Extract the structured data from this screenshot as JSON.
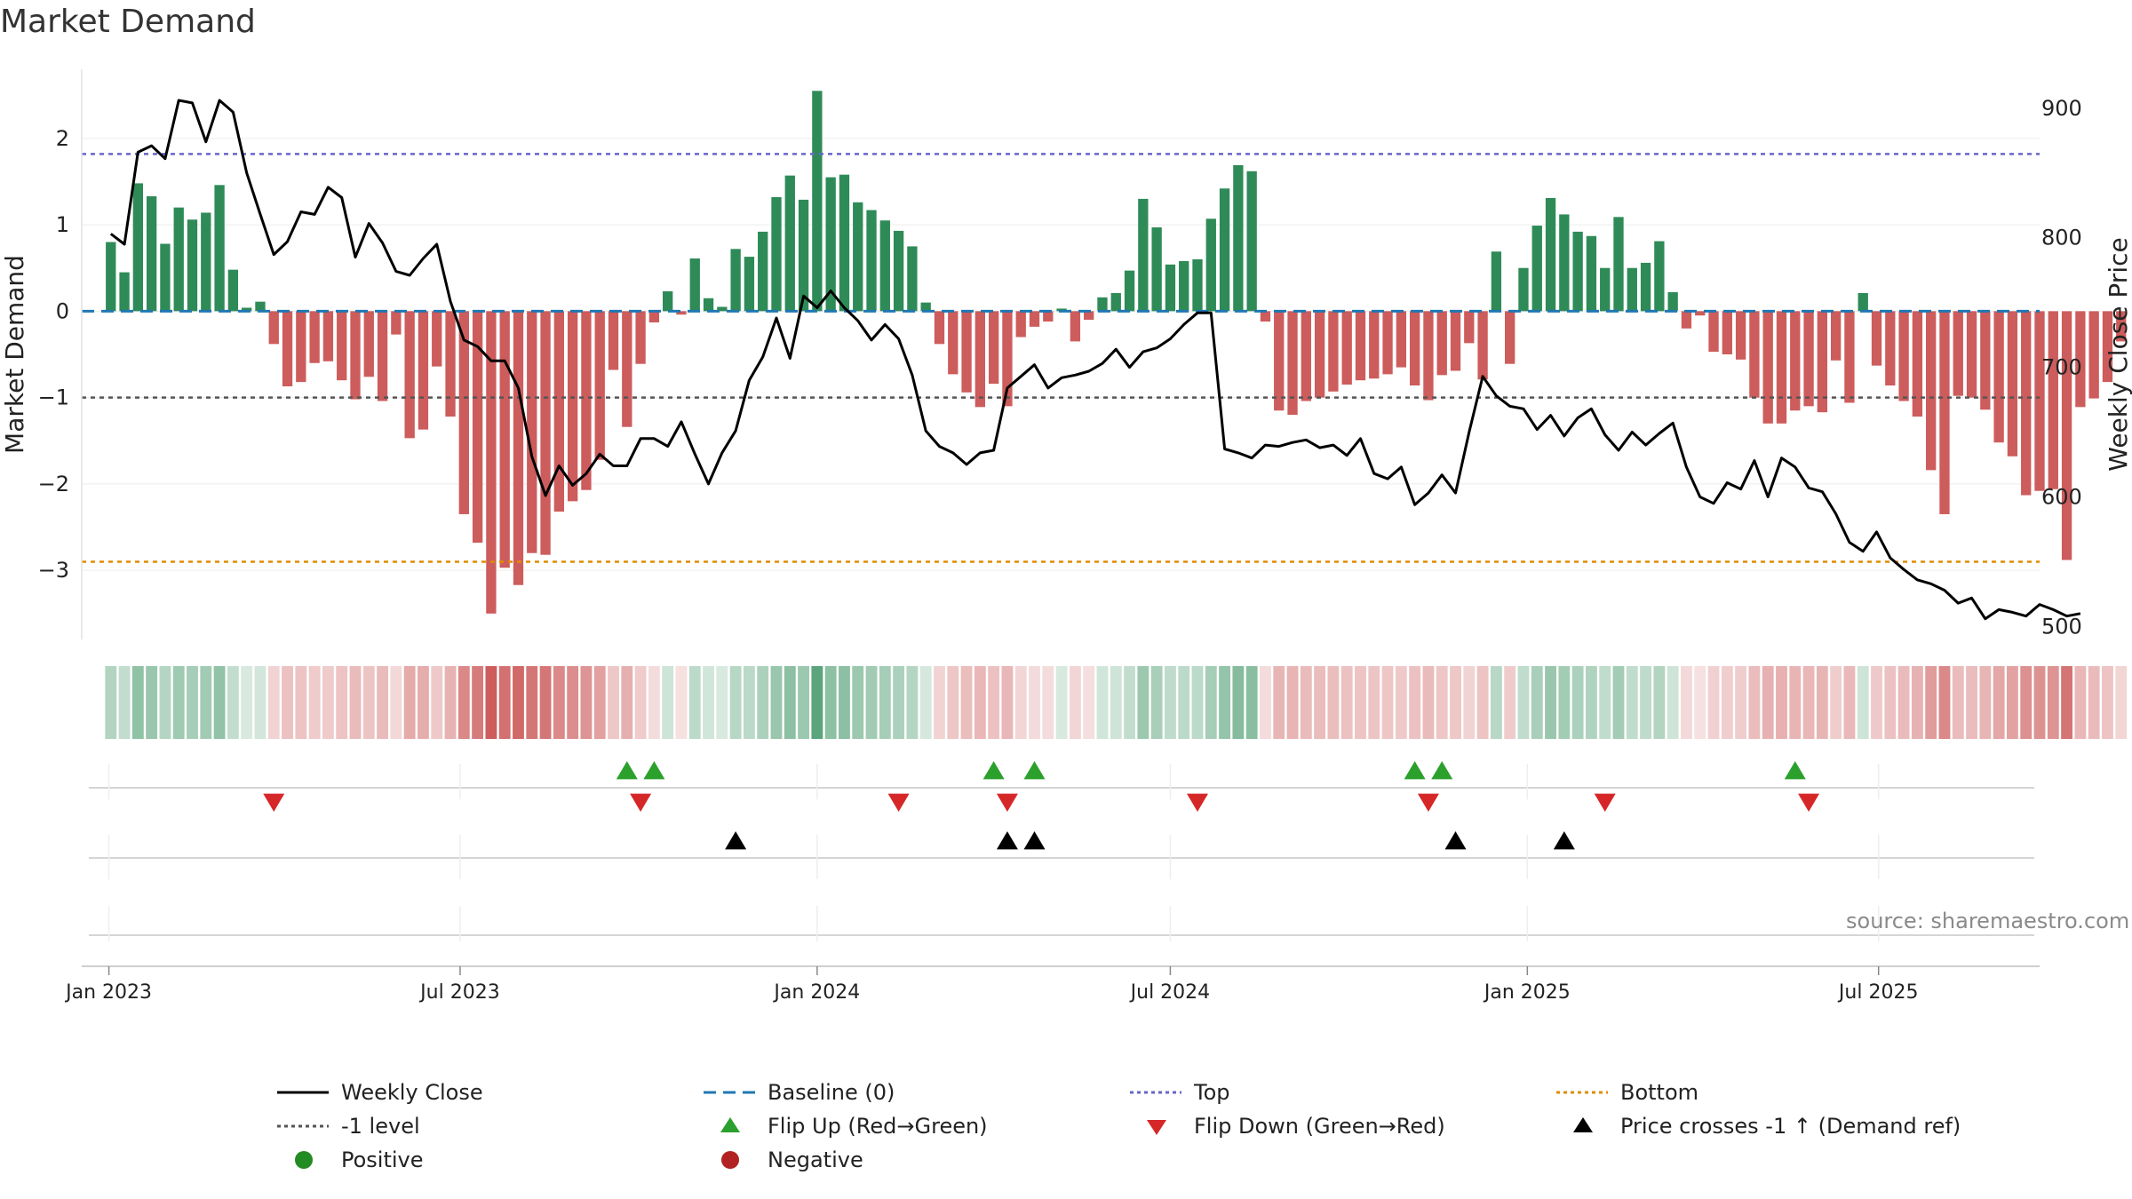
{
  "title": "Market Demand",
  "source": "source: sharemaestro.com",
  "colors": {
    "positive_bar": "#2e8b57",
    "negative_bar": "#cd5c5c",
    "price_line": "#000000",
    "baseline": "#1f77b4",
    "minus_one": "#555555",
    "top": "#6666cc",
    "bottom": "#e08c00",
    "flip_up": "#2ca02c",
    "flip_down": "#d62728",
    "cross": "#000000",
    "positive_dot": "#228b22",
    "negative_dot": "#b22222"
  },
  "chart_data": {
    "type": "bar",
    "title": "Market Demand",
    "ylabel_left": "Market Demand",
    "ylabel_right": "Weekly Close Price",
    "ylim_left": [
      -3.8,
      2.8
    ],
    "yticks_left": [
      -3,
      -2,
      -1,
      0,
      1,
      2
    ],
    "ytick_labels_left": [
      "−3",
      "−2",
      "−1",
      "0",
      "1",
      "2"
    ],
    "ylim_right": [
      490,
      930
    ],
    "yticks_right": [
      500,
      600,
      700,
      800,
      900
    ],
    "ytick_labels_right": [
      "500",
      "600",
      "700",
      "800",
      "900"
    ],
    "x_start": "2023-01-02",
    "x_end": "2025-09-15",
    "date_axis_min": "2022-12-18",
    "date_axis_max": "2025-09-22",
    "x_ticks": [
      {
        "date": "2023-01-01",
        "label": "Jan 2023"
      },
      {
        "date": "2023-07-01",
        "label": "Jul 2023"
      },
      {
        "date": "2024-01-01",
        "label": "Jan 2024"
      },
      {
        "date": "2024-07-01",
        "label": "Jul 2024"
      },
      {
        "date": "2025-01-01",
        "label": "Jan 2025"
      },
      {
        "date": "2025-07-01",
        "label": "Jul 2025"
      }
    ],
    "reference_lines": {
      "baseline": 0,
      "minus_one": -1,
      "top": 1.82,
      "bottom": -2.9
    },
    "demand": [
      0.8,
      0.45,
      1.48,
      1.33,
      0.78,
      1.2,
      1.06,
      1.14,
      1.46,
      0.48,
      0.04,
      0.11,
      -0.38,
      -0.87,
      -0.82,
      -0.6,
      -0.58,
      -0.8,
      -1.02,
      -0.76,
      -1.04,
      -0.27,
      -1.47,
      -1.37,
      -0.64,
      -1.22,
      -2.35,
      -2.68,
      -3.5,
      -2.97,
      -3.17,
      -2.8,
      -2.82,
      -2.32,
      -2.2,
      -2.07,
      -1.72,
      -0.68,
      -1.34,
      -0.61,
      -0.13,
      0.23,
      -0.04,
      0.61,
      0.15,
      0.05,
      0.72,
      0.63,
      0.92,
      1.32,
      1.57,
      1.29,
      2.55,
      1.55,
      1.58,
      1.26,
      1.17,
      1.05,
      0.93,
      0.75,
      0.1,
      -0.38,
      -0.73,
      -0.94,
      -1.11,
      -0.84,
      -1.1,
      -0.3,
      -0.18,
      -0.12,
      0.03,
      -0.35,
      -0.1,
      0.16,
      0.21,
      0.47,
      1.3,
      0.97,
      0.54,
      0.58,
      0.6,
      1.07,
      1.42,
      1.69,
      1.62,
      -0.12,
      -1.15,
      -1.2,
      -1.04,
      -1.0,
      -0.93,
      -0.85,
      -0.8,
      -0.78,
      -0.73,
      -0.65,
      -0.86,
      -1.03,
      -0.74,
      -0.69,
      -0.37,
      -0.79,
      0.69,
      -0.61,
      0.5,
      0.99,
      1.31,
      1.12,
      0.92,
      0.87,
      0.5,
      1.09,
      0.5,
      0.56,
      0.81,
      0.22,
      -0.2,
      -0.05,
      -0.47,
      -0.5,
      -0.56,
      -1.0,
      -1.3,
      -1.3,
      -1.15,
      -1.1,
      -1.17,
      -0.57,
      -1.06,
      0.21,
      -0.63,
      -0.86,
      -1.04,
      -1.22,
      -1.84,
      -2.35,
      -0.98,
      -1.0,
      -1.14,
      -1.52,
      -1.68,
      -2.13,
      -2.08,
      -2.06,
      -2.88,
      -1.11,
      -1.01,
      -0.82,
      -0.35
    ],
    "price": [
      803,
      795,
      866,
      871,
      861,
      906,
      904,
      874,
      906,
      897,
      850,
      818,
      787,
      797,
      820,
      818,
      839,
      831,
      785,
      811,
      796,
      774,
      771,
      784,
      795,
      751,
      721,
      716,
      705,
      705,
      684,
      631,
      601,
      624,
      609,
      618,
      633,
      624,
      624,
      645,
      645,
      639,
      658,
      633,
      610,
      634,
      651,
      690,
      708,
      738,
      707,
      755,
      746,
      759,
      746,
      736,
      721,
      733,
      722,
      694,
      651,
      639,
      634,
      625,
      634,
      636,
      684,
      693,
      702,
      684,
      692,
      694,
      697,
      703,
      714,
      700,
      712,
      715,
      722,
      733,
      742,
      742,
      637,
      634,
      630,
      640,
      639,
      642,
      644,
      638,
      640,
      632,
      645,
      618,
      614,
      623,
      594,
      603,
      617,
      603,
      650,
      693,
      678,
      670,
      668,
      652,
      663,
      647,
      661,
      668,
      648,
      636,
      650,
      640,
      649,
      657,
      623,
      600,
      595,
      611,
      606,
      628,
      600,
      630,
      623,
      607,
      604,
      587,
      565,
      558,
      573,
      553,
      544,
      536,
      533,
      528,
      518,
      522,
      506,
      513,
      511,
      508,
      517,
      513,
      508,
      510
    ],
    "flip_up_dates": [
      "2023-09-25",
      "2023-10-09",
      "2024-04-01",
      "2024-04-22",
      "2024-11-04",
      "2024-11-18",
      "2025-05-19"
    ],
    "flip_down_dates": [
      "2023-03-27",
      "2023-10-02",
      "2024-02-12",
      "2024-04-08",
      "2024-07-15",
      "2024-11-11",
      "2025-02-10",
      "2025-05-26"
    ],
    "price_cross_dates": [
      "2023-11-20",
      "2024-04-08",
      "2024-04-22",
      "2024-11-25",
      "2025-01-20"
    ]
  },
  "legend": {
    "weekly_close": "Weekly Close",
    "baseline": "Baseline (0)",
    "top": "Top",
    "bottom": "Bottom",
    "minus_one": "-1 level",
    "flip_up": "Flip Up (Red→Green)",
    "flip_down": "Flip Down (Green→Red)",
    "price_cross": "Price crosses -1 ↑ (Demand ref)",
    "positive": "Positive",
    "negative": "Negative"
  }
}
